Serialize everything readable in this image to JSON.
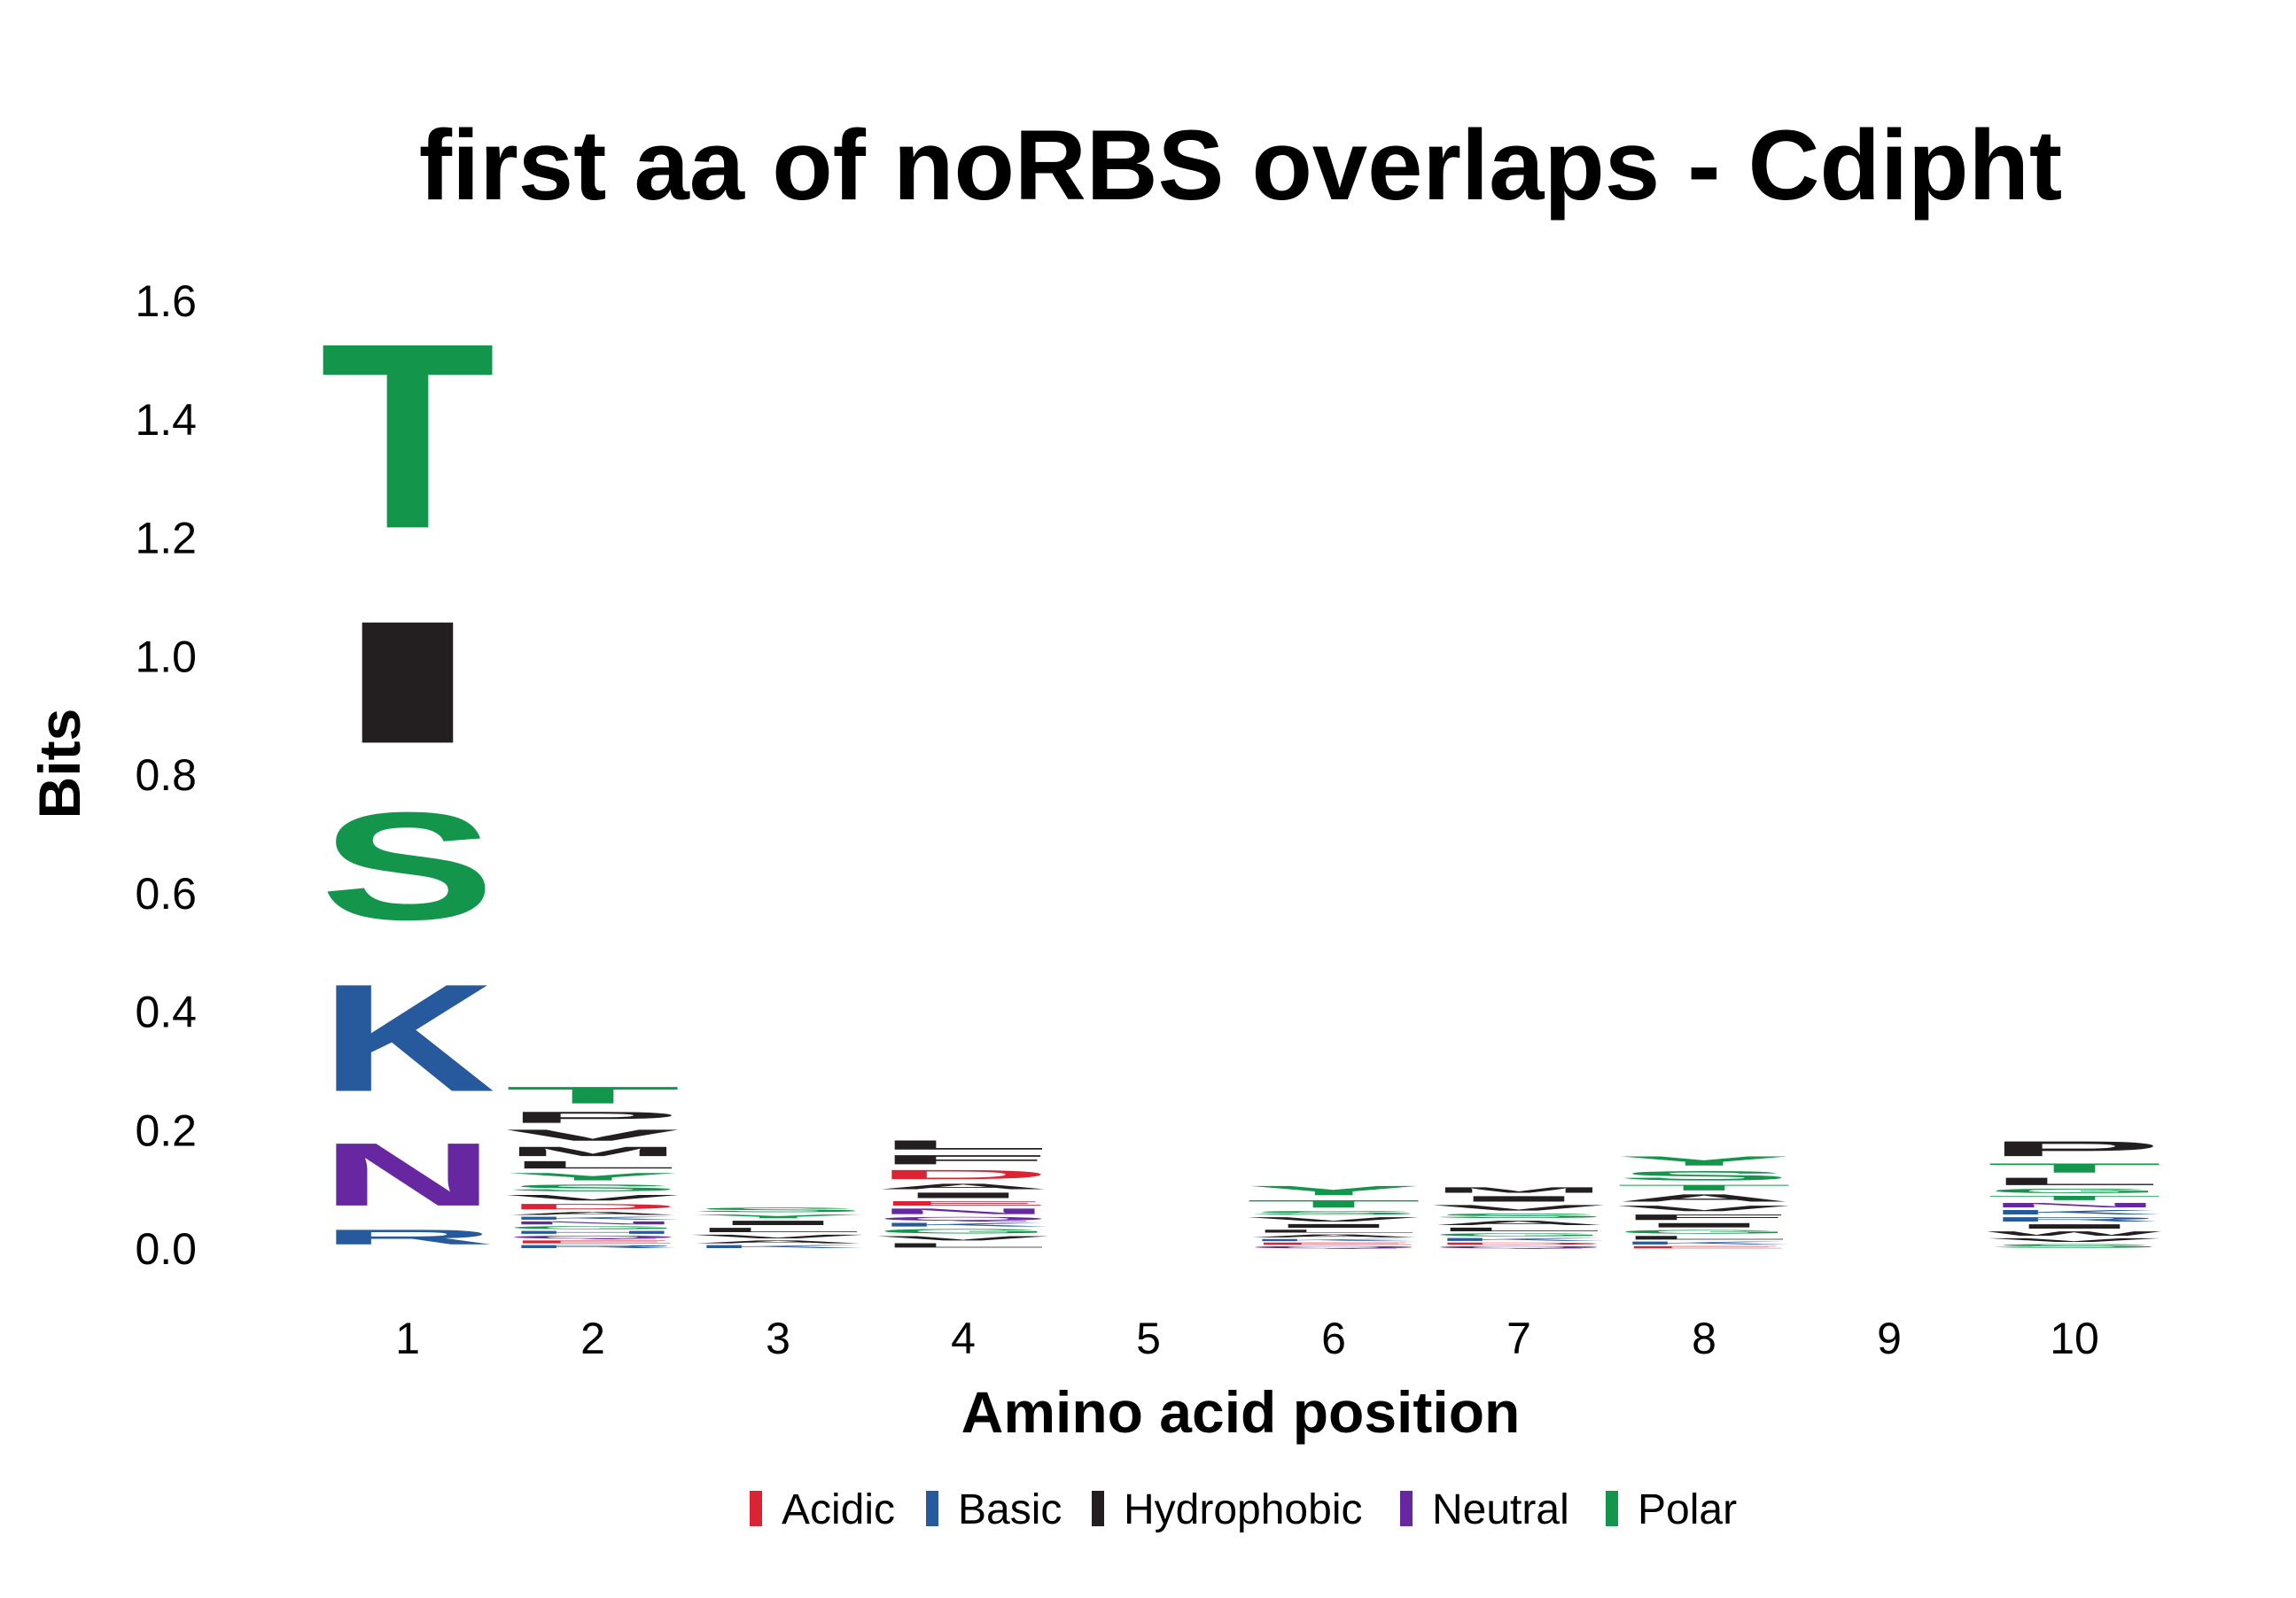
{
  "chart_data": {
    "type": "sequence-logo",
    "title": "first aa of noRBS overlaps - Cdipht",
    "xlabel": "Amino acid position",
    "ylabel": "Bits",
    "ylim": [
      0,
      1.6
    ],
    "y_ticks": [
      "0.0",
      "0.2",
      "0.4",
      "0.6",
      "0.8",
      "1.0",
      "1.2",
      "1.4",
      "1.6"
    ],
    "positions": [
      "1",
      "2",
      "3",
      "4",
      "5",
      "6",
      "7",
      "8",
      "9",
      "10"
    ],
    "colors": {
      "Acidic": "#DC2334",
      "Basic": "#275A9C",
      "Hydrophobic": "#231F20",
      "Neutral": "#6727A0",
      "Polar": "#13964B"
    },
    "legend": [
      "Acidic",
      "Basic",
      "Hydrophobic",
      "Neutral",
      "Polar"
    ],
    "legend_position": "bottom",
    "stacks": [
      {
        "position": "1",
        "letters": [
          {
            "aa": "R",
            "class": "Basic",
            "bits": 0.04
          },
          {
            "aa": "N",
            "class": "Neutral",
            "bits": 0.17
          },
          {
            "aa": "K",
            "class": "Basic",
            "bits": 0.29
          },
          {
            "aa": "S",
            "class": "Polar",
            "bits": 0.29
          },
          {
            "aa": "I",
            "class": "Hydrophobic",
            "bits": 0.33
          },
          {
            "aa": "T",
            "class": "Polar",
            "bits": 0.5
          }
        ]
      },
      {
        "position": "2",
        "letters": [
          {
            "aa": "R",
            "class": "Basic",
            "bits": 0.008
          },
          {
            "aa": "E",
            "class": "Acidic",
            "bits": 0.008
          },
          {
            "aa": "Q",
            "class": "Neutral",
            "bits": 0.008
          },
          {
            "aa": "H",
            "class": "Basic",
            "bits": 0.008
          },
          {
            "aa": "G",
            "class": "Polar",
            "bits": 0.008
          },
          {
            "aa": "N",
            "class": "Neutral",
            "bits": 0.008
          },
          {
            "aa": "K",
            "class": "Basic",
            "bits": 0.008
          },
          {
            "aa": "A",
            "class": "Hydrophobic",
            "bits": 0.008
          },
          {
            "aa": "D",
            "class": "Acidic",
            "bits": 0.015
          },
          {
            "aa": "V",
            "class": "Hydrophobic",
            "bits": 0.015
          },
          {
            "aa": "S",
            "class": "Polar",
            "bits": 0.018
          },
          {
            "aa": "Y",
            "class": "Polar",
            "bits": 0.02
          },
          {
            "aa": "L",
            "class": "Hydrophobic",
            "bits": 0.02
          },
          {
            "aa": "M",
            "class": "Hydrophobic",
            "bits": 0.025
          },
          {
            "aa": "V",
            "class": "Hydrophobic",
            "bits": 0.03
          },
          {
            "aa": "P",
            "class": "Hydrophobic",
            "bits": 0.03
          },
          {
            "aa": "T",
            "class": "Polar",
            "bits": 0.045
          }
        ]
      },
      {
        "position": "3",
        "letters": [
          {
            "aa": "K",
            "class": "Basic",
            "bits": 0.008
          },
          {
            "aa": "A",
            "class": "Hydrophobic",
            "bits": 0.008
          },
          {
            "aa": "V",
            "class": "Hydrophobic",
            "bits": 0.01
          },
          {
            "aa": "L",
            "class": "Hydrophobic",
            "bits": 0.012
          },
          {
            "aa": "I",
            "class": "Hydrophobic",
            "bits": 0.012
          },
          {
            "aa": "Y",
            "class": "Polar",
            "bits": 0.01
          },
          {
            "aa": "S",
            "class": "Polar",
            "bits": 0.012
          }
        ]
      },
      {
        "position": "4",
        "letters": [
          {
            "aa": "L",
            "class": "Hydrophobic",
            "bits": 0.012
          },
          {
            "aa": "V",
            "class": "Hydrophobic",
            "bits": 0.012
          },
          {
            "aa": "G",
            "class": "Polar",
            "bits": 0.012
          },
          {
            "aa": "K",
            "class": "Basic",
            "bits": 0.01
          },
          {
            "aa": "Q",
            "class": "Neutral",
            "bits": 0.01
          },
          {
            "aa": "N",
            "class": "Neutral",
            "bits": 0.015
          },
          {
            "aa": "E",
            "class": "Acidic",
            "bits": 0.012
          },
          {
            "aa": "I",
            "class": "Hydrophobic",
            "bits": 0.015
          },
          {
            "aa": "A",
            "class": "Hydrophobic",
            "bits": 0.015
          },
          {
            "aa": "D",
            "class": "Acidic",
            "bits": 0.025
          },
          {
            "aa": "F",
            "class": "Hydrophobic",
            "bits": 0.025
          },
          {
            "aa": "L",
            "class": "Hydrophobic",
            "bits": 0.025
          }
        ]
      },
      {
        "position": "5",
        "letters": []
      },
      {
        "position": "6",
        "letters": [
          {
            "aa": "Q",
            "class": "Neutral",
            "bits": 0.006
          },
          {
            "aa": "E",
            "class": "Acidic",
            "bits": 0.006
          },
          {
            "aa": "K",
            "class": "Basic",
            "bits": 0.006
          },
          {
            "aa": "A",
            "class": "Hydrophobic",
            "bits": 0.008
          },
          {
            "aa": "L",
            "class": "Hydrophobic",
            "bits": 0.008
          },
          {
            "aa": "I",
            "class": "Hydrophobic",
            "bits": 0.01
          },
          {
            "aa": "V",
            "class": "Hydrophobic",
            "bits": 0.012
          },
          {
            "aa": "S",
            "class": "Polar",
            "bits": 0.01
          },
          {
            "aa": "T",
            "class": "Polar",
            "bits": 0.02
          },
          {
            "aa": "Y",
            "class": "Polar",
            "bits": 0.025
          }
        ]
      },
      {
        "position": "7",
        "letters": [
          {
            "aa": "Q",
            "class": "Neutral",
            "bits": 0.006
          },
          {
            "aa": "D",
            "class": "Acidic",
            "bits": 0.006
          },
          {
            "aa": "K",
            "class": "Basic",
            "bits": 0.008
          },
          {
            "aa": "G",
            "class": "Polar",
            "bits": 0.008
          },
          {
            "aa": "L",
            "class": "Hydrophobic",
            "bits": 0.01
          },
          {
            "aa": "A",
            "class": "Hydrophobic",
            "bits": 0.012
          },
          {
            "aa": "S",
            "class": "Polar",
            "bits": 0.012
          },
          {
            "aa": "V",
            "class": "Hydrophobic",
            "bits": 0.015
          },
          {
            "aa": "I",
            "class": "Hydrophobic",
            "bits": 0.015
          },
          {
            "aa": "M",
            "class": "Hydrophobic",
            "bits": 0.015
          }
        ]
      },
      {
        "position": "8",
        "letters": [
          {
            "aa": "E",
            "class": "Acidic",
            "bits": 0.006
          },
          {
            "aa": "K",
            "class": "Basic",
            "bits": 0.008
          },
          {
            "aa": "L",
            "class": "Hydrophobic",
            "bits": 0.01
          },
          {
            "aa": "G",
            "class": "Polar",
            "bits": 0.01
          },
          {
            "aa": "I",
            "class": "Hydrophobic",
            "bits": 0.012
          },
          {
            "aa": "F",
            "class": "Hydrophobic",
            "bits": 0.015
          },
          {
            "aa": "V",
            "class": "Hydrophobic",
            "bits": 0.015
          },
          {
            "aa": "A",
            "class": "Hydrophobic",
            "bits": 0.02
          },
          {
            "aa": "T",
            "class": "Polar",
            "bits": 0.015
          },
          {
            "aa": "S",
            "class": "Polar",
            "bits": 0.025
          },
          {
            "aa": "Y",
            "class": "Polar",
            "bits": 0.025
          }
        ]
      },
      {
        "position": "9",
        "letters": []
      },
      {
        "position": "10",
        "letters": [
          {
            "aa": "S",
            "class": "Polar",
            "bits": 0.01
          },
          {
            "aa": "V",
            "class": "Hydrophobic",
            "bits": 0.01
          },
          {
            "aa": "W",
            "class": "Hydrophobic",
            "bits": 0.012
          },
          {
            "aa": "I",
            "class": "Hydrophobic",
            "bits": 0.012
          },
          {
            "aa": "R",
            "class": "Basic",
            "bits": 0.012
          },
          {
            "aa": "K",
            "class": "Basic",
            "bits": 0.012
          },
          {
            "aa": "N",
            "class": "Neutral",
            "bits": 0.012
          },
          {
            "aa": "T",
            "class": "Polar",
            "bits": 0.012
          },
          {
            "aa": "G",
            "class": "Polar",
            "bits": 0.012
          },
          {
            "aa": "L",
            "class": "Hydrophobic",
            "bits": 0.02
          },
          {
            "aa": "T",
            "class": "Polar",
            "bits": 0.025
          },
          {
            "aa": "P",
            "class": "Hydrophobic",
            "bits": 0.04
          }
        ]
      }
    ]
  }
}
